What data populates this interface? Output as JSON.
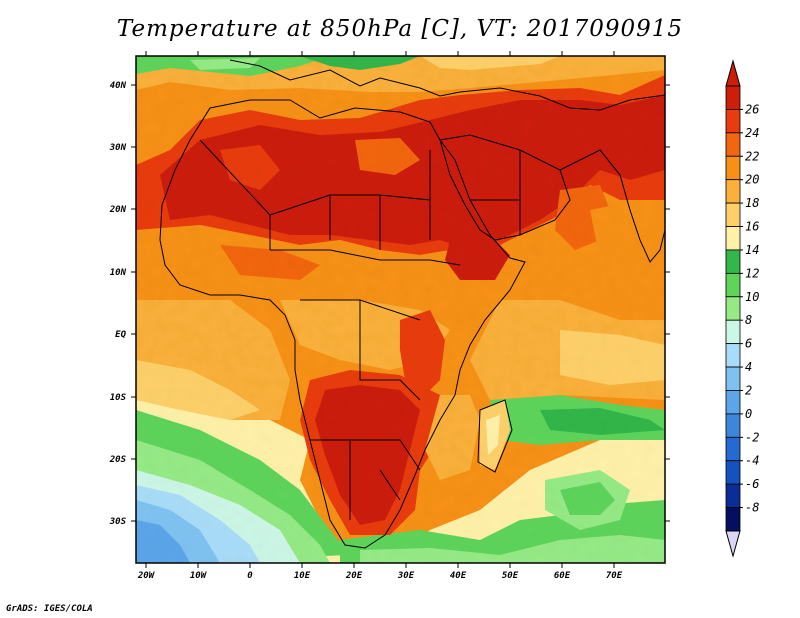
{
  "title": "Temperature at 850hPa [C], VT: 2017090915",
  "credit": "GrADS: IGES/COLA",
  "lat_ticks": [
    "40N",
    "30N",
    "20N",
    "10N",
    "EQ",
    "10S",
    "20S",
    "30S"
  ],
  "lon_ticks": [
    "20W",
    "10W",
    "0",
    "10E",
    "20E",
    "30E",
    "40E",
    "50E",
    "60E",
    "70E"
  ],
  "colorbar": {
    "labels": [
      "26",
      "24",
      "22",
      "20",
      "18",
      "16",
      "14",
      "12",
      "10",
      "8",
      "6",
      "4",
      "2",
      "0",
      "-2",
      "-4",
      "-6",
      "-8"
    ],
    "colors": [
      "#cc1e08",
      "#e83c10",
      "#f2660f",
      "#f79116",
      "#fab03a",
      "#fdd06a",
      "#fff1a8",
      "#33b64a",
      "#5ed45b",
      "#96ea86",
      "#ccf6e6",
      "#a9dcf8",
      "#7fc2f1",
      "#5ba5e8",
      "#3e86dc",
      "#236bd0",
      "#1452bd",
      "#0a2e96",
      "#04105e"
    ]
  },
  "map": {
    "projection": "lat-lon",
    "lon_range": [
      -22,
      80
    ],
    "lat_range": [
      -36,
      45
    ],
    "field": "temperature_850hPa",
    "units": "C",
    "valid_time": "2017090915"
  }
}
